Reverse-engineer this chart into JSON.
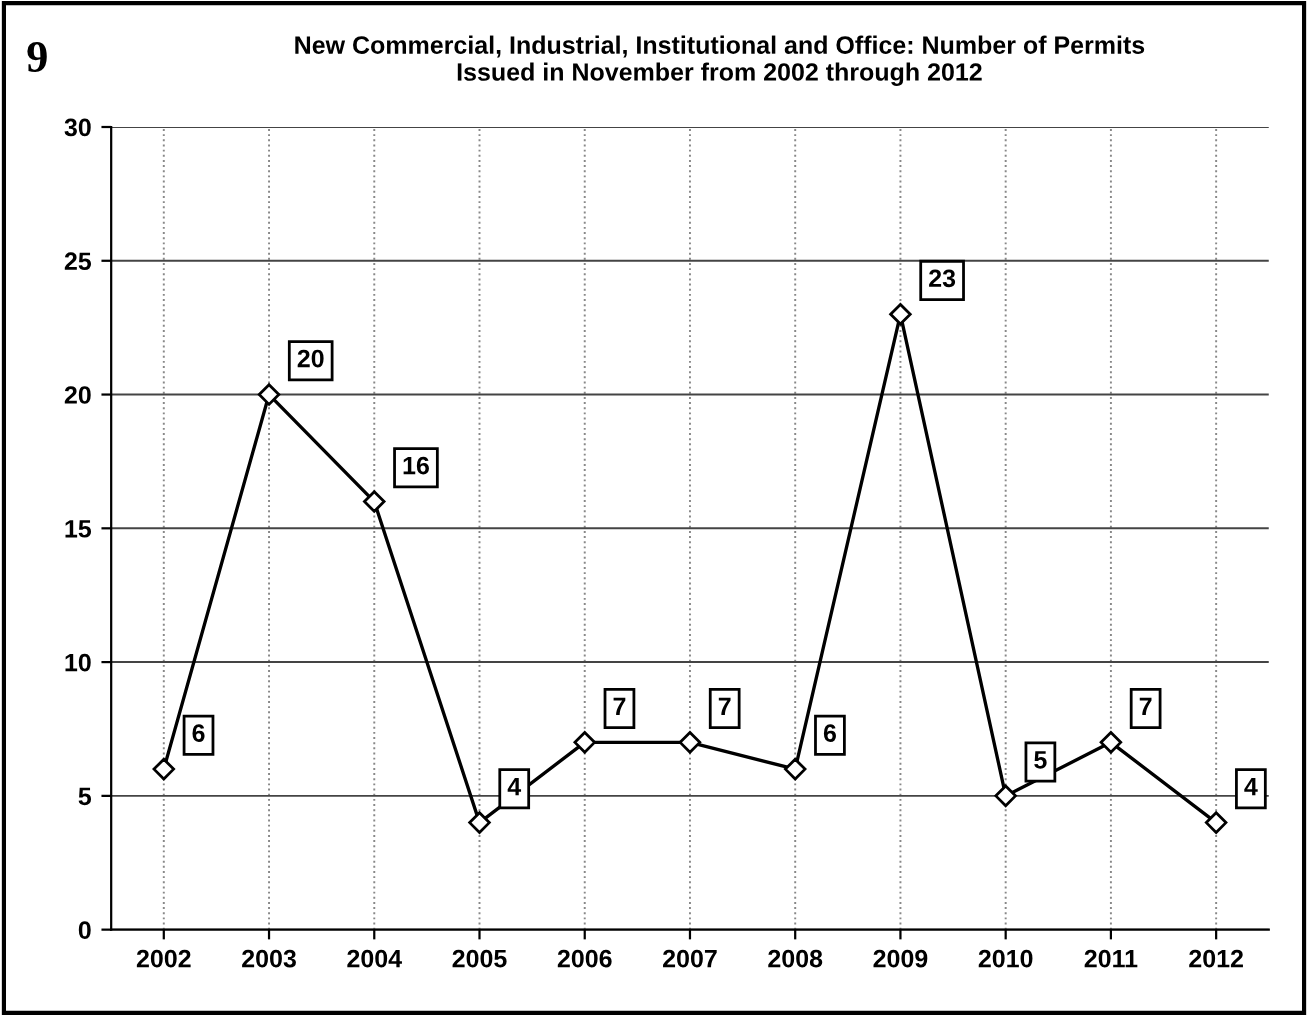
{
  "chart_data": {
    "type": "line",
    "title": "New Commercial, Industrial, Institutional and Office: Number of Permits\nIssued in November from 2002 through 2012",
    "annotations": [
      "9"
    ],
    "categories": [
      "2002",
      "2003",
      "2004",
      "2005",
      "2006",
      "2007",
      "2008",
      "2009",
      "2010",
      "2011",
      "2012"
    ],
    "values": [
      6,
      20,
      16,
      4,
      7,
      7,
      6,
      23,
      5,
      7,
      4
    ],
    "color": "#000000",
    "marker": "diamond",
    "line_style": "solid",
    "ylim": [
      0,
      30
    ],
    "yticks": [
      0,
      5,
      10,
      15,
      20,
      25,
      30
    ],
    "grid": true,
    "data_labels": true
  }
}
